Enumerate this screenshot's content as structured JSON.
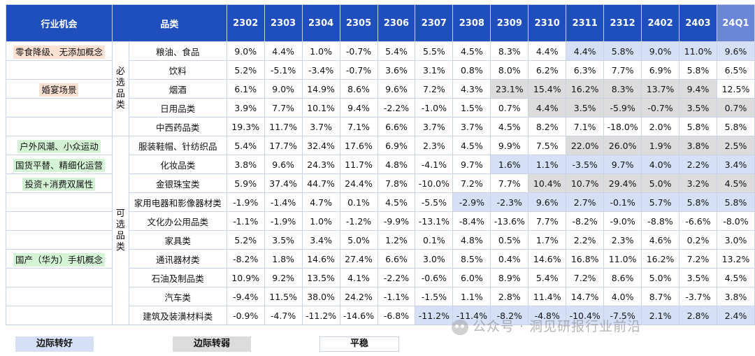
{
  "header": {
    "opportunity": "行业机会",
    "category": "品类",
    "periods": [
      "2302",
      "2303",
      "2304",
      "2305",
      "2306",
      "2307",
      "2308",
      "2309",
      "2310",
      "2311",
      "2312",
      "2402",
      "2403",
      "24Q1"
    ]
  },
  "groups": {
    "essential": "必选品类",
    "optional": "可选品类"
  },
  "rows": [
    {
      "opp": "零食降级、无添加概念",
      "tag": "orange",
      "cat": "粮油、食品",
      "vals": [
        "9.0%",
        "4.4%",
        "1.0%",
        "-0.7%",
        "5.4%",
        "5.5%",
        "4.5%",
        "8.3%",
        "4.4%",
        "4.4%",
        "5.8%",
        "9.0%",
        "11.0%",
        "9.6%"
      ],
      "st": [
        "",
        "",
        "",
        "",
        "",
        "",
        "",
        "",
        "",
        "u",
        "u",
        "u",
        "u",
        "u"
      ]
    },
    {
      "opp": "",
      "tag": "",
      "cat": "饮料",
      "vals": [
        "5.2%",
        "-5.1%",
        "-3.4%",
        "-0.7%",
        "3.6%",
        "3.1%",
        "0.8%",
        "8.0%",
        "6.2%",
        "6.3%",
        "7.7%",
        "6.9%",
        "5.8%",
        "6.5%"
      ],
      "st": [
        "",
        "",
        "",
        "",
        "",
        "",
        "",
        "",
        "",
        "",
        "",
        "",
        "",
        ""
      ]
    },
    {
      "opp": "婚宴场景",
      "tag": "orange",
      "cat": "烟酒",
      "vals": [
        "6.1%",
        "9.0%",
        "14.9%",
        "8.6%",
        "9.6%",
        "7.2%",
        "4.3%",
        "23.1%",
        "15.4%",
        "16.2%",
        "8.3%",
        "13.7%",
        "9.4%",
        "12.5%"
      ],
      "st": [
        "",
        "",
        "",
        "",
        "",
        "",
        "",
        "d",
        "d",
        "d",
        "d",
        "d",
        "d",
        ""
      ]
    },
    {
      "opp": "",
      "tag": "",
      "cat": "日用品类",
      "vals": [
        "3.9%",
        "7.7%",
        "10.1%",
        "9.4%",
        "-2.2%",
        "-1.0%",
        "1.5%",
        "0.7%",
        "4.4%",
        "3.5%",
        "-5.9%",
        "-0.7%",
        "3.5%",
        "0.7%"
      ],
      "st": [
        "",
        "",
        "",
        "",
        "",
        "",
        "",
        "",
        "d",
        "d",
        "d",
        "d",
        "d",
        "d"
      ]
    },
    {
      "opp": "",
      "tag": "",
      "cat": "中西药品类",
      "vals": [
        "19.3%",
        "11.7%",
        "3.7%",
        "7.1%",
        "6.6%",
        "3.7%",
        "3.7%",
        "4.5%",
        "8.2%",
        "7.1%",
        "-18.0%",
        "2.0%",
        "5.8%",
        "5.8%"
      ],
      "st": [
        "",
        "",
        "",
        "",
        "",
        "",
        "",
        "",
        "",
        "",
        "",
        "",
        "",
        ""
      ]
    },
    {
      "opp": "户外风潮、小众运动",
      "tag": "green",
      "cat": "服装鞋帽、针纺织品",
      "vals": [
        "5.4%",
        "17.7%",
        "32.4%",
        "17.6%",
        "6.9%",
        "2.3%",
        "4.5%",
        "9.9%",
        "7.5%",
        "22.0%",
        "26.0%",
        "1.9%",
        "3.8%",
        "2.5%"
      ],
      "st": [
        "",
        "",
        "",
        "",
        "",
        "",
        "",
        "",
        "",
        "d",
        "d",
        "d",
        "d",
        "d"
      ]
    },
    {
      "opp": "国货平替、精细化运营",
      "tag": "green",
      "cat": "化妆品类",
      "vals": [
        "3.8%",
        "9.6%",
        "24.3%",
        "11.7%",
        "4.8%",
        "-4.1%",
        "9.7%",
        "1.6%",
        "1.1%",
        "-3.5%",
        "9.7%",
        "4.0%",
        "2.2%",
        "3.4%"
      ],
      "st": [
        "",
        "",
        "",
        "",
        "",
        "",
        "",
        "u",
        "u",
        "u",
        "u",
        "u",
        "u",
        "u"
      ]
    },
    {
      "opp": "投资+消费双属性",
      "tag": "green",
      "cat": "金银珠宝类",
      "vals": [
        "5.9%",
        "37.4%",
        "44.7%",
        "24.4%",
        "7.8%",
        "-10.0%",
        "7.2%",
        "7.7%",
        "10.4%",
        "10.7%",
        "29.4%",
        "5.0%",
        "3.2%",
        "4.5%"
      ],
      "st": [
        "",
        "",
        "",
        "",
        "",
        "",
        "",
        "",
        "d",
        "d",
        "d",
        "d",
        "d",
        "d"
      ]
    },
    {
      "opp": "",
      "tag": "",
      "cat": "家用电器和影像器材类",
      "vals": [
        "-1.9%",
        "-1.4%",
        "4.7%",
        "0.1%",
        "4.5%",
        "-5.5%",
        "-2.9%",
        "-2.3%",
        "9.6%",
        "2.7%",
        "-0.1%",
        "5.7%",
        "5.8%",
        "5.8%"
      ],
      "st": [
        "",
        "",
        "",
        "",
        "",
        "",
        "u",
        "u",
        "u",
        "u",
        "u",
        "u",
        "u",
        "u"
      ]
    },
    {
      "opp": "",
      "tag": "",
      "cat": "文化办公用品类",
      "vals": [
        "-1.1%",
        "-1.9%",
        "1.0%",
        "-1.2%",
        "-9.9%",
        "-13.1%",
        "-8.4%",
        "-13.6%",
        "7.7%",
        "-8.2%",
        "-9.0%",
        "-8.8%",
        "-6.6%",
        "-8.0%"
      ],
      "st": [
        "",
        "",
        "",
        "",
        "",
        "",
        "",
        "",
        "",
        "",
        "",
        "",
        "",
        ""
      ]
    },
    {
      "opp": "",
      "tag": "",
      "cat": "家具类",
      "vals": [
        "5.2%",
        "3.5%",
        "3.4%",
        "5.0%",
        "1.2%",
        "0.1%",
        "4.8%",
        "0.5%",
        "1.7%",
        "2.2%",
        "2.3%",
        "4.6%",
        "0.2%",
        "3.0%"
      ],
      "st": [
        "",
        "",
        "",
        "",
        "",
        "",
        "",
        "",
        "",
        "",
        "",
        "",
        "",
        ""
      ]
    },
    {
      "opp": "国产（华为）手机概念",
      "tag": "green",
      "cat": "通讯器材类",
      "vals": [
        "-8.2%",
        "1.8%",
        "14.6%",
        "27.4%",
        "6.6%",
        "3.0%",
        "8.5%",
        "0.4%",
        "14.6%",
        "16.8%",
        "11.0%",
        "16.2%",
        "7.2%",
        "13.2%"
      ],
      "st": [
        "",
        "",
        "",
        "",
        "",
        "",
        "",
        "",
        "",
        "",
        "",
        "",
        "",
        ""
      ]
    },
    {
      "opp": "",
      "tag": "",
      "cat": "石油及制品类",
      "vals": [
        "10.9%",
        "9.2%",
        "13.5%",
        "4.1%",
        "-2.2%",
        "-0.6%",
        "6.0%",
        "8.9%",
        "5.4%",
        "7.2%",
        "8.6%",
        "5.0%",
        "3.5%",
        "4.5%"
      ],
      "st": [
        "",
        "",
        "",
        "",
        "",
        "",
        "",
        "",
        "",
        "",
        "",
        "",
        "",
        ""
      ]
    },
    {
      "opp": "",
      "tag": "",
      "cat": "汽车类",
      "vals": [
        "-9.4%",
        "11.5%",
        "38.0%",
        "24.2%",
        "-1.1%",
        "-1.5%",
        "1.1%",
        "2.8%",
        "11.4%",
        "14.7%",
        "4.0%",
        "8.7%",
        "-3.7%",
        "3.8%"
      ],
      "st": [
        "",
        "",
        "",
        "",
        "",
        "",
        "",
        "",
        "",
        "",
        "",
        "",
        "",
        ""
      ]
    },
    {
      "opp": "",
      "tag": "",
      "cat": "建筑及装潢材料类",
      "vals": [
        "-0.9%",
        "-4.7%",
        "-11.2%",
        "-14.6%",
        "-6.8%",
        "-11.2%",
        "-11.4%",
        "-8.2%",
        "-4.8%",
        "-10.4%",
        "-7.5%",
        "2.1%",
        "2.8%",
        "2.4%"
      ],
      "st": [
        "",
        "",
        "",
        "",
        "",
        "u",
        "u",
        "u",
        "u",
        "u",
        "u",
        "u",
        "u",
        "u"
      ]
    }
  ],
  "legend": {
    "up": "边际转好",
    "down": "边际转弱",
    "flat": "平稳"
  },
  "watermark": "公众号 · 洞见研报行业前沿"
}
